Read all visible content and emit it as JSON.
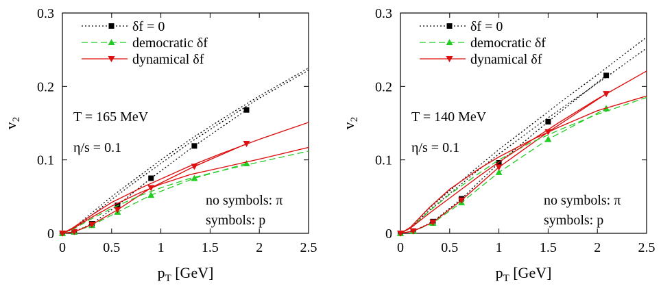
{
  "colors": {
    "pi_p_ideal": "#000000",
    "democratic": "#22cc22",
    "dynamical": "#dd1111"
  },
  "chart_data": [
    {
      "type": "line",
      "xlim": [
        0,
        2.5
      ],
      "ylim": [
        0,
        0.3
      ],
      "xticks": [
        0,
        0.5,
        1,
        1.5,
        2,
        2.5
      ],
      "xtick_labels": [
        "0",
        "0.5",
        "1",
        "1.5",
        "2",
        "2.5"
      ],
      "yticks": [
        0,
        0.1,
        0.2,
        0.3
      ],
      "ytick_labels": [
        "0",
        "0.1",
        "0.2",
        "0.3"
      ],
      "xlabel": "p_T [GeV]",
      "xlabel_main": "p",
      "xlabel_sub": "T",
      "xlabel_rest": " [GeV]",
      "ylabel": "v_2",
      "ylabel_main": "v",
      "ylabel_sub": "2",
      "grid": false,
      "legend_position": "top-left",
      "annotations": [
        "T = 165 MeV",
        "η/s = 0.1"
      ],
      "note_lines": [
        "no symbols: π",
        "symbols: p"
      ],
      "series": [
        {
          "name": "δf = 0",
          "style": "dotted",
          "color": "#000000",
          "marker": "square",
          "x": [
            0,
            0.12,
            0.3,
            0.56,
            0.9,
            1.34,
            1.87
          ],
          "y": [
            0,
            0.002,
            0.013,
            0.038,
            0.075,
            0.119,
            0.168
          ]
        },
        {
          "name": "democratic δf",
          "style": "dashed",
          "color": "#22cc22",
          "marker": "triangle-up",
          "x": [
            0,
            0.12,
            0.3,
            0.56,
            0.9,
            1.34,
            1.87
          ],
          "y": [
            0,
            0.002,
            0.011,
            0.029,
            0.052,
            0.075,
            0.095
          ]
        },
        {
          "name": "dynamical δf",
          "style": "solid",
          "color": "#dd1111",
          "marker": "triangle-down",
          "x": [
            0,
            0.12,
            0.3,
            0.56,
            0.9,
            1.34,
            1.87
          ],
          "y": [
            0,
            0.002,
            0.012,
            0.032,
            0.062,
            0.091,
            0.122
          ]
        },
        {
          "name": "",
          "style": "dotted",
          "color": "#000000",
          "marker": "none",
          "x": [
            0,
            0.1,
            0.3,
            0.5,
            0.8,
            1.0,
            1.3,
            1.6,
            2.0,
            2.5
          ],
          "y": [
            0,
            0.006,
            0.028,
            0.05,
            0.08,
            0.1,
            0.128,
            0.154,
            0.187,
            0.225
          ]
        },
        {
          "name": "",
          "style": "dotted",
          "color": "#000000",
          "marker": "none",
          "x": [
            0,
            0.1,
            0.3,
            0.5,
            0.8,
            1.0,
            1.3,
            1.6,
            2.0,
            2.5
          ],
          "y": [
            0,
            0.005,
            0.025,
            0.046,
            0.076,
            0.095,
            0.124,
            0.15,
            0.184,
            0.222
          ]
        },
        {
          "name": "",
          "style": "dashed",
          "color": "#22cc22",
          "marker": "none",
          "x": [
            0,
            0.1,
            0.3,
            0.5,
            0.8,
            1.0,
            1.3,
            1.6,
            2.0,
            2.5
          ],
          "y": [
            0,
            0.005,
            0.02,
            0.034,
            0.052,
            0.062,
            0.075,
            0.085,
            0.097,
            0.112
          ]
        },
        {
          "name": "",
          "style": "solid",
          "color": "#dd1111",
          "marker": "none",
          "x": [
            0,
            0.1,
            0.3,
            0.5,
            0.8,
            1.0,
            1.3,
            1.6,
            2.0,
            2.5
          ],
          "y": [
            0,
            0.006,
            0.022,
            0.037,
            0.056,
            0.067,
            0.08,
            0.089,
            0.101,
            0.117
          ]
        },
        {
          "name": "",
          "style": "solid",
          "color": "#dd1111",
          "marker": "none",
          "x": [
            0,
            0.1,
            0.3,
            0.5,
            0.8,
            1.0,
            1.3,
            1.6,
            2.0,
            2.5
          ],
          "y": [
            0,
            0.007,
            0.025,
            0.042,
            0.062,
            0.074,
            0.092,
            0.108,
            0.128,
            0.151
          ]
        }
      ]
    },
    {
      "type": "line",
      "xlim": [
        0,
        2.5
      ],
      "ylim": [
        0,
        0.3
      ],
      "xticks": [
        0,
        0.5,
        1,
        1.5,
        2,
        2.5
      ],
      "xtick_labels": [
        "0",
        "0.5",
        "1",
        "1.5",
        "2",
        "2.5"
      ],
      "yticks": [
        0,
        0.1,
        0.2,
        0.3
      ],
      "ytick_labels": [
        "0",
        "0.1",
        "0.2",
        "0.3"
      ],
      "xlabel": "p_T [GeV]",
      "xlabel_main": "p",
      "xlabel_sub": "T",
      "xlabel_rest": " [GeV]",
      "ylabel": "v_2",
      "ylabel_main": "v",
      "ylabel_sub": "2",
      "grid": false,
      "legend_position": "top-left",
      "annotations": [
        "T = 140 MeV",
        "η/s = 0.1"
      ],
      "note_lines": [
        "no symbols: π",
        "symbols: p"
      ],
      "series": [
        {
          "name": "δf = 0",
          "style": "dotted",
          "color": "#000000",
          "marker": "square",
          "x": [
            0,
            0.13,
            0.33,
            0.62,
            1.0,
            1.5,
            2.09
          ],
          "y": [
            0,
            0.003,
            0.016,
            0.047,
            0.096,
            0.152,
            0.215
          ]
        },
        {
          "name": "democratic δf",
          "style": "dashed",
          "color": "#22cc22",
          "marker": "triangle-up",
          "x": [
            0,
            0.13,
            0.33,
            0.62,
            1.0,
            1.5,
            2.09
          ],
          "y": [
            0,
            0.003,
            0.014,
            0.042,
            0.083,
            0.128,
            0.17
          ]
        },
        {
          "name": "dynamical δf",
          "style": "solid",
          "color": "#dd1111",
          "marker": "triangle-down",
          "x": [
            0,
            0.13,
            0.33,
            0.62,
            1.0,
            1.5,
            2.09
          ],
          "y": [
            0,
            0.003,
            0.015,
            0.045,
            0.09,
            0.138,
            0.19
          ]
        },
        {
          "name": "",
          "style": "dotted",
          "color": "#000000",
          "marker": "none",
          "x": [
            0,
            0.1,
            0.3,
            0.5,
            0.8,
            1.0,
            1.3,
            1.6,
            2.0,
            2.5
          ],
          "y": [
            0,
            0.008,
            0.035,
            0.058,
            0.092,
            0.114,
            0.145,
            0.176,
            0.216,
            0.267
          ]
        },
        {
          "name": "",
          "style": "dotted",
          "color": "#000000",
          "marker": "none",
          "x": [
            0,
            0.1,
            0.3,
            0.5,
            0.8,
            1.0,
            1.3,
            1.6,
            2.0,
            2.5
          ],
          "y": [
            0,
            0.007,
            0.032,
            0.054,
            0.087,
            0.108,
            0.138,
            0.167,
            0.204,
            0.252
          ]
        },
        {
          "name": "",
          "style": "dashed",
          "color": "#22cc22",
          "marker": "none",
          "x": [
            0,
            0.1,
            0.3,
            0.5,
            0.8,
            1.0,
            1.3,
            1.6,
            2.0,
            2.5
          ],
          "y": [
            0,
            0.007,
            0.031,
            0.053,
            0.082,
            0.1,
            0.122,
            0.14,
            0.162,
            0.185
          ]
        },
        {
          "name": "",
          "style": "solid",
          "color": "#dd1111",
          "marker": "none",
          "x": [
            0,
            0.1,
            0.3,
            0.5,
            0.8,
            1.0,
            1.3,
            1.6,
            2.0,
            2.5
          ],
          "y": [
            0,
            0.008,
            0.036,
            0.06,
            0.088,
            0.104,
            0.125,
            0.144,
            0.167,
            0.187
          ]
        },
        {
          "name": "",
          "style": "solid",
          "color": "#dd1111",
          "marker": "none",
          "x": [
            0,
            0.1,
            0.3,
            0.5,
            0.8,
            1.0,
            1.3,
            1.6,
            2.0,
            2.5
          ],
          "y": [
            0,
            0.007,
            0.028,
            0.048,
            0.078,
            0.097,
            0.124,
            0.15,
            0.183,
            0.221
          ]
        }
      ]
    }
  ]
}
